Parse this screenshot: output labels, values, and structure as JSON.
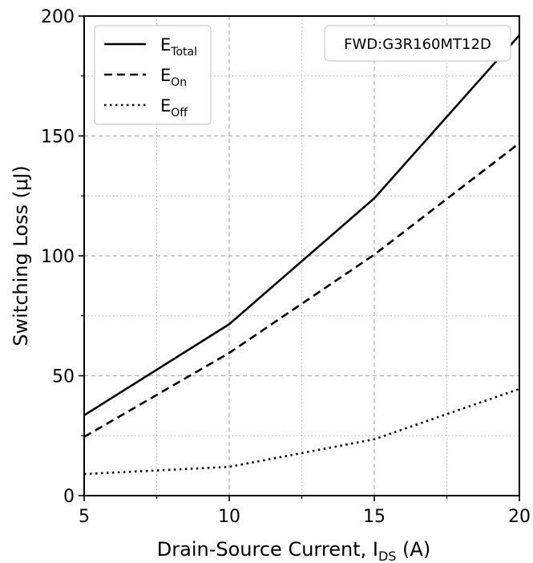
{
  "chart_data": {
    "type": "line",
    "title": "",
    "xlabel": "Drain-Source Current, I",
    "xlabel_sub": "DS",
    "xlabel_suffix": " (A)",
    "ylabel": "Switching Loss (μJ)",
    "xlim": [
      5,
      20
    ],
    "ylim": [
      0,
      200
    ],
    "xticks": [
      5,
      10,
      15,
      20
    ],
    "yticks": [
      0,
      50,
      100,
      150,
      200
    ],
    "grid": true,
    "legend_position": "top-left",
    "x": [
      5,
      10,
      15,
      20
    ],
    "series": [
      {
        "name": "E_Total",
        "label_main": "E",
        "label_sub": "Total",
        "style": "solid",
        "values": [
          33.5,
          71.5,
          124,
          192
        ]
      },
      {
        "name": "E_On",
        "label_main": "E",
        "label_sub": "On",
        "style": "dashed",
        "values": [
          24.5,
          59.5,
          100.5,
          147
        ]
      },
      {
        "name": "E_Off",
        "label_main": "E",
        "label_sub": "Off",
        "style": "dotted",
        "values": [
          9,
          12,
          23.5,
          44.5
        ]
      }
    ],
    "annotation": "FWD:G3R160MT12D",
    "colors": {
      "line": "#000000",
      "grid": "#b0b0b0",
      "background": "#ffffff"
    }
  }
}
